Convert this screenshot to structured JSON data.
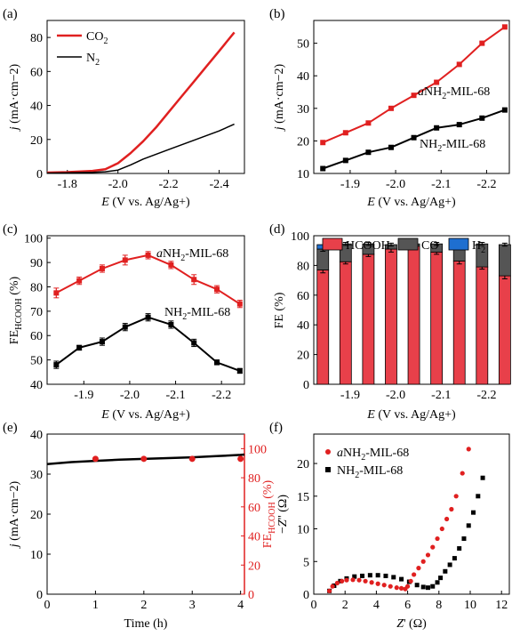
{
  "chart_data": [
    {
      "panel": "(a)",
      "type": "line",
      "xlabel": "E (V vs. Ag/Ag⁺)",
      "ylabel": "j (mA·cm⁻²)",
      "xlim": [
        -1.72,
        -2.5
      ],
      "ylim": [
        0,
        90
      ],
      "xticks": [
        -1.8,
        -2.0,
        -2.2,
        -2.4
      ],
      "xticklabels": [
        "-1.8",
        "-2.0",
        "-2.2",
        "-2.4"
      ],
      "yticks": [
        0,
        20,
        40,
        60,
        80
      ],
      "yticklabels": [
        "0",
        "20",
        "40",
        "60",
        "80"
      ],
      "legend": [
        "CO₂",
        "N₂"
      ],
      "legend_placement": "top-left",
      "series": [
        {
          "name": "CO₂",
          "color": "#e02020",
          "x": [
            -1.72,
            -1.8,
            -1.9,
            -1.95,
            -2.0,
            -2.05,
            -2.1,
            -2.15,
            -2.2,
            -2.25,
            -2.3,
            -2.35,
            -2.4,
            -2.46
          ],
          "y": [
            0.5,
            0.8,
            1.5,
            2.5,
            6,
            12,
            19,
            27,
            36,
            45,
            54,
            63,
            72,
            83
          ]
        },
        {
          "name": "N₂",
          "color": "#000000",
          "x": [
            -1.72,
            -1.8,
            -1.9,
            -1.95,
            -2.0,
            -2.05,
            -2.1,
            -2.2,
            -2.3,
            -2.4,
            -2.46
          ],
          "y": [
            0.2,
            0.4,
            0.7,
            1.0,
            2.0,
            5.0,
            8.5,
            14,
            19.5,
            25,
            29
          ]
        }
      ]
    },
    {
      "panel": "(b)",
      "type": "line",
      "xlabel": "E (V vs. Ag/Ag⁺)",
      "ylabel": "j (mA·cm⁻²)",
      "xlim": [
        -1.82,
        -2.25
      ],
      "ylim": [
        10,
        57
      ],
      "xticks": [
        -1.9,
        -2.0,
        -2.1,
        -2.2
      ],
      "xticklabels": [
        "-1.9",
        "-2.0",
        "-2.1",
        "-2.2"
      ],
      "yticks": [
        10,
        20,
        30,
        40,
        50
      ],
      "yticklabels": [
        "10",
        "20",
        "30",
        "40",
        "50"
      ],
      "series": [
        {
          "name": "aNH₂-MIL-68",
          "color": "#e02020",
          "x": [
            -1.84,
            -1.89,
            -1.94,
            -1.99,
            -2.04,
            -2.09,
            -2.14,
            -2.19,
            -2.24
          ],
          "y": [
            19.5,
            22.5,
            25.5,
            30,
            34,
            38,
            43.5,
            50,
            55
          ]
        },
        {
          "name": "NH₂-MIL-68",
          "color": "#000000",
          "x": [
            -1.84,
            -1.89,
            -1.94,
            -1.99,
            -2.04,
            -2.09,
            -2.14,
            -2.19,
            -2.24
          ],
          "y": [
            11.5,
            14,
            16.5,
            18,
            21,
            24,
            25,
            27,
            29.5
          ]
        }
      ]
    },
    {
      "panel": "(c)",
      "type": "line",
      "xlabel": "E (V vs. Ag/Ag⁺)",
      "ylabel": "FE_HCOOH (%)",
      "xlim": [
        -1.82,
        -2.25
      ],
      "ylim": [
        40,
        101
      ],
      "xticks": [
        -1.9,
        -2.0,
        -2.1,
        -2.2
      ],
      "xticklabels": [
        "-1.9",
        "-2.0",
        "-2.1",
        "-2.2"
      ],
      "yticks": [
        40,
        50,
        60,
        70,
        80,
        90,
        100
      ],
      "yticklabels": [
        "40",
        "50",
        "60",
        "70",
        "80",
        "90",
        "100"
      ],
      "series": [
        {
          "name": "aNH₂-MIL-68",
          "color": "#e02020",
          "x": [
            -1.84,
            -1.89,
            -1.94,
            -1.99,
            -2.04,
            -2.09,
            -2.14,
            -2.19,
            -2.24
          ],
          "y": [
            77.5,
            82.5,
            87.5,
            91,
            93,
            89,
            83,
            79,
            73
          ],
          "err": [
            2,
            1.5,
            1.5,
            2,
            1.5,
            1.5,
            2,
            1.5,
            1.5
          ]
        },
        {
          "name": "NH₂-MIL-68",
          "color": "#000000",
          "x": [
            -1.84,
            -1.89,
            -1.94,
            -1.99,
            -2.04,
            -2.09,
            -2.14,
            -2.19,
            -2.24
          ],
          "y": [
            48,
            55,
            57.5,
            63.5,
            67.5,
            64.5,
            57,
            49,
            45.5
          ],
          "err": [
            1.5,
            1,
            1.5,
            1.5,
            1.5,
            1.5,
            1.5,
            1,
            1
          ]
        }
      ]
    },
    {
      "panel": "(d)",
      "type": "bar",
      "stacked": true,
      "xlabel": "E (V vs. Ag/Ag⁺)",
      "ylabel": "FE (%)",
      "xlim": [
        -1.82,
        -2.25
      ],
      "ylim": [
        0,
        100
      ],
      "xticks": [
        -1.9,
        -2.0,
        -2.1,
        -2.2
      ],
      "xticklabels": [
        "-1.9",
        "-2.0",
        "-2.1",
        "-2.2"
      ],
      "yticks": [
        0,
        20,
        40,
        60,
        80,
        100
      ],
      "yticklabels": [
        "0",
        "20",
        "40",
        "60",
        "80",
        "100"
      ],
      "legend": [
        "HCOOH",
        "CO",
        "H₂"
      ],
      "legend_placement": "top",
      "x": [
        -1.84,
        -1.89,
        -1.94,
        -1.99,
        -2.04,
        -2.09,
        -2.14,
        -2.19,
        -2.24
      ],
      "series": [
        {
          "name": "HCOOH",
          "color": "#e8404a",
          "values": [
            77,
            82.5,
            87.5,
            91,
            93,
            89,
            83,
            79,
            73
          ],
          "err": [
            2,
            1.5,
            1.5,
            2,
            1.5,
            1.5,
            2,
            1.5,
            2
          ]
        },
        {
          "name": "CO",
          "color": "#555555",
          "values": [
            14,
            12,
            7,
            3,
            1.5,
            5.5,
            11.5,
            15.5,
            21
          ],
          "err": [
            1.5,
            1,
            1,
            1,
            1,
            1,
            1,
            1,
            1
          ]
        },
        {
          "name": "H₂",
          "color": "#1e6fd0",
          "values": [
            3,
            0,
            0,
            0,
            0,
            0,
            0,
            0,
            0
          ]
        }
      ]
    },
    {
      "panel": "(e)",
      "type": "line",
      "xlabel": "Time (h)",
      "ylabel": "j (mA·cm⁻²)",
      "y2label": "FE_HCOOH (%)",
      "xlim": [
        0,
        4.08
      ],
      "ylim": [
        0,
        40
      ],
      "y2lim": [
        0,
        110
      ],
      "xticks": [
        0,
        1,
        2,
        3,
        4
      ],
      "xticklabels": [
        "0",
        "1",
        "2",
        "3",
        "4"
      ],
      "yticks": [
        0,
        10,
        20,
        30,
        40
      ],
      "yticklabels": [
        "0",
        "10",
        "20",
        "30",
        "40"
      ],
      "y2ticks": [
        0,
        20,
        40,
        60,
        80,
        100
      ],
      "y2ticklabels": [
        "0",
        "20",
        "40",
        "60",
        "80",
        "100"
      ],
      "series": [
        {
          "name": "j",
          "axis": "left",
          "color": "#000000",
          "x": [
            0,
            0.5,
            1,
            1.5,
            2,
            2.5,
            3,
            3.5,
            4,
            4.08
          ],
          "y": [
            32.5,
            33.0,
            33.3,
            33.6,
            33.8,
            34.0,
            34.2,
            34.5,
            34.8,
            34.9
          ]
        },
        {
          "name": "FE_HCOOH",
          "axis": "right",
          "color": "#e02020",
          "x": [
            1,
            2,
            3,
            4
          ],
          "y": [
            93,
            93,
            93,
            93
          ]
        }
      ]
    },
    {
      "panel": "(f)",
      "type": "scatter",
      "xlabel": "Z' (Ω)",
      "ylabel": "−Z'' (Ω)",
      "xlim": [
        0,
        12.5
      ],
      "ylim": [
        0,
        24.5
      ],
      "xticks": [
        0,
        2,
        4,
        6,
        8,
        10,
        12
      ],
      "xticklabels": [
        "0",
        "2",
        "4",
        "6",
        "8",
        "10",
        "12"
      ],
      "yticks": [
        0,
        5,
        10,
        15,
        20
      ],
      "yticklabels": [
        "0",
        "5",
        "10",
        "15",
        "20"
      ],
      "legend": [
        "aNH₂-MIL-68",
        "NH₂-MIL-68"
      ],
      "legend_placement": "top-left",
      "series": [
        {
          "name": "aNH₂-MIL-68",
          "color": "#e02020",
          "marker": "circle",
          "x": [
            1.0,
            1.2,
            1.5,
            1.8,
            2.1,
            2.5,
            2.9,
            3.3,
            3.7,
            4.1,
            4.5,
            4.9,
            5.3,
            5.6,
            5.85,
            6.0,
            6.2,
            6.4,
            6.7,
            7.0,
            7.3,
            7.6,
            7.9,
            8.2,
            8.5,
            8.8,
            9.1,
            9.5,
            9.9
          ],
          "y": [
            0.5,
            1.2,
            1.7,
            2.0,
            2.15,
            2.2,
            2.15,
            2.0,
            1.8,
            1.6,
            1.4,
            1.2,
            1.0,
            0.9,
            0.8,
            1.2,
            2.0,
            3.0,
            4.0,
            5.0,
            6.0,
            7.2,
            8.5,
            10,
            11.5,
            13,
            15,
            18.5,
            22.2
          ]
        },
        {
          "name": "NH₂-MIL-68",
          "color": "#000000",
          "marker": "square",
          "x": [
            1.0,
            1.3,
            1.7,
            2.1,
            2.6,
            3.1,
            3.6,
            4.1,
            4.6,
            5.1,
            5.6,
            6.1,
            6.6,
            7.0,
            7.3,
            7.6,
            7.9,
            8.1,
            8.4,
            8.7,
            9.0,
            9.3,
            9.6,
            9.9,
            10.2,
            10.5,
            10.8
          ],
          "y": [
            0.5,
            1.3,
            2.0,
            2.4,
            2.7,
            2.8,
            2.9,
            2.9,
            2.8,
            2.6,
            2.3,
            1.9,
            1.4,
            1.1,
            1.0,
            1.2,
            1.8,
            2.5,
            3.5,
            4.5,
            5.5,
            7.0,
            8.5,
            10.5,
            12.5,
            15,
            17.8
          ]
        }
      ]
    }
  ]
}
